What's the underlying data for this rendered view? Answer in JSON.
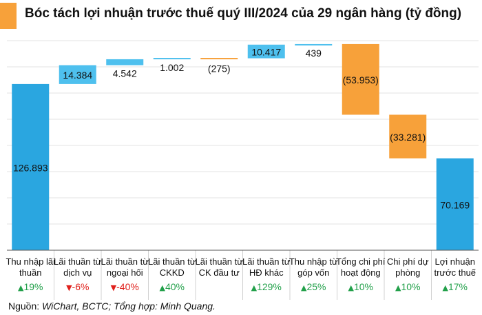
{
  "title": "Bóc tách lợi nhuận trước thuế quý III/2024 của 29 ngân hàng (tỷ đồng)",
  "source": {
    "prefix": "Nguồn: ",
    "text": "WiChart, BCTC; Tổng hợp: Minh Quang."
  },
  "colors": {
    "accent": "#f7a13a",
    "positive": "#4ec0ee",
    "negative": "#f7a13a",
    "total": "#2aa6e0",
    "up": "#22a04a",
    "down": "#e0201b"
  },
  "chart_data": {
    "type": "waterfall",
    "grid": true,
    "categories": [
      "Thu nhập lãi thuần",
      "Lãi thuần từ dịch vụ",
      "Lãi thuần từ ngoại hối",
      "Lãi thuần từ CKKD",
      "Lãi thuần từ CK đầu tư",
      "Lãi thuần từ HĐ khác",
      "Thu nhập từ góp vốn",
      "Tổng chi phí hoạt động",
      "Chi phí dự phòng",
      "Lợi nhuận trước thuế"
    ],
    "category_lines": [
      [
        "Thu nhập lãi",
        "thuần"
      ],
      [
        "Lãi thuần từ",
        "dịch vụ"
      ],
      [
        "Lãi thuần từ",
        "ngoại hối"
      ],
      [
        "Lãi thuần từ",
        "CKKD"
      ],
      [
        "Lãi thuần từ",
        "CK đầu tư"
      ],
      [
        "Lãi thuần từ",
        "HĐ khác"
      ],
      [
        "Thu nhập từ",
        "góp vốn"
      ],
      [
        "Tổng chi phí",
        "hoạt động"
      ],
      [
        "Chi phí dự",
        "phòng"
      ],
      [
        "Lợi nhuận",
        "trước thuế"
      ]
    ],
    "values": [
      126893,
      14384,
      4542,
      1002,
      -275,
      10417,
      439,
      -53953,
      -33281,
      70169
    ],
    "value_labels": [
      "126.893",
      "14.384",
      "4.542",
      "1.002",
      "(275)",
      "10.417",
      "439",
      "(53.953)",
      "(33.281)",
      "70.169"
    ],
    "kinds": [
      "total",
      "delta",
      "delta",
      "delta",
      "delta",
      "delta",
      "delta",
      "delta",
      "delta",
      "total"
    ],
    "changes": [
      {
        "dir": "up",
        "text": "19%"
      },
      {
        "dir": "down",
        "text": "-6%"
      },
      {
        "dir": "down",
        "text": "-40%"
      },
      {
        "dir": "up",
        "text": "40%"
      },
      null,
      {
        "dir": "up",
        "text": "129%"
      },
      {
        "dir": "up",
        "text": "25%"
      },
      {
        "dir": "up",
        "text": "10%"
      },
      {
        "dir": "up",
        "text": "10%"
      },
      {
        "dir": "up",
        "text": "17%"
      }
    ],
    "ylim": [
      0,
      160000
    ]
  }
}
